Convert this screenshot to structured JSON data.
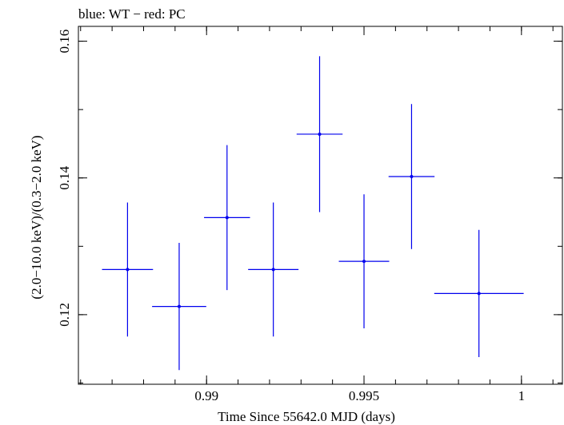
{
  "chart_data": {
    "type": "scatter",
    "title": "blue: WT − red: PC",
    "xlabel": "Time Since 55642.0 MJD (days)",
    "ylabel": "(2.0−10.0 keV)/(0.3−2.0 keV)",
    "xlim": [
      0.98593,
      1.0013
    ],
    "ylim": [
      0.10982,
      0.16217
    ],
    "xticks": [
      {
        "value": 0.99,
        "label": "0.99"
      },
      {
        "value": 0.995,
        "label": "0.995"
      },
      {
        "value": 1.0,
        "label": "1"
      }
    ],
    "yticks": [
      {
        "value": 0.12,
        "label": "0.12"
      },
      {
        "value": 0.14,
        "label": "0.14"
      },
      {
        "value": 0.16,
        "label": "0.16"
      }
    ],
    "x_minor_step": 0.001,
    "y_minor_step": 0.01,
    "series": [
      {
        "name": "WT",
        "color": "#0000ee",
        "points": [
          {
            "x": 0.98749,
            "xerr": 0.00081,
            "y": 0.1266,
            "yerr": 0.0098
          },
          {
            "x": 0.98913,
            "xerr": 0.00086,
            "y": 0.1212,
            "yerr": 0.0093
          },
          {
            "x": 0.99065,
            "xerr": 0.00073,
            "y": 0.1342,
            "yerr": 0.0106
          },
          {
            "x": 0.99212,
            "xerr": 0.0008,
            "y": 0.1266,
            "yerr": 0.0098
          },
          {
            "x": 0.99359,
            "xerr": 0.00073,
            "y": 0.1464,
            "yerr": 0.0114
          },
          {
            "x": 0.995,
            "xerr": 0.0008,
            "y": 0.1278,
            "yerr": 0.0098
          },
          {
            "x": 0.99651,
            "xerr": 0.00073,
            "y": 0.1402,
            "yerr": 0.0106
          },
          {
            "x": 0.99865,
            "xerr": 0.00142,
            "y": 0.1231,
            "yerr": 0.0093
          }
        ]
      }
    ]
  }
}
